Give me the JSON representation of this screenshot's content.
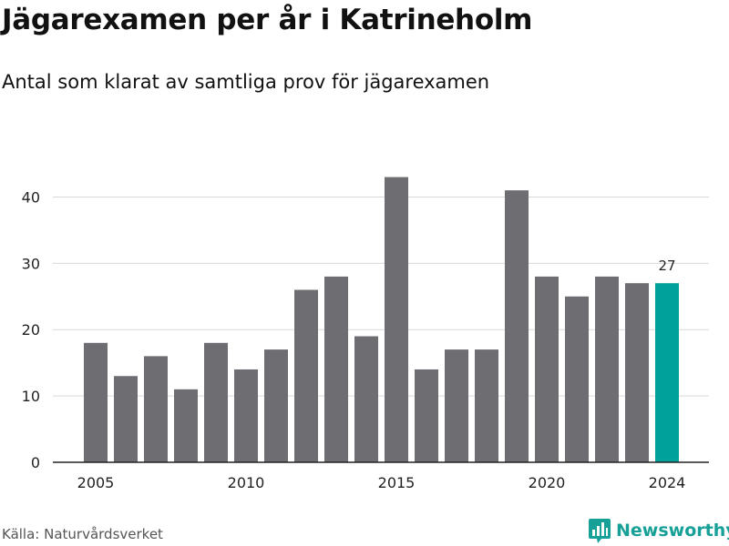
{
  "chart_data": {
    "type": "bar",
    "title": "Jägarexamen per år i Katrineholm",
    "subtitle": "Antal som klarat av samtliga prov för jägarexamen",
    "xlabel": "",
    "ylabel": "",
    "x": [
      2005,
      2006,
      2007,
      2008,
      2009,
      2010,
      2011,
      2012,
      2013,
      2014,
      2015,
      2016,
      2017,
      2018,
      2019,
      2020,
      2021,
      2022,
      2023,
      2024
    ],
    "values": [
      18,
      13,
      16,
      11,
      18,
      14,
      17,
      26,
      28,
      19,
      43,
      14,
      17,
      17,
      41,
      28,
      25,
      28,
      27,
      27
    ],
    "ylim": [
      0,
      45
    ],
    "yticks": [
      0,
      10,
      20,
      30,
      40
    ],
    "xticks": [
      "2005",
      "2010",
      "2015",
      "2020",
      "2024"
    ],
    "highlight": {
      "x": 2024,
      "label": "27"
    },
    "colors": {
      "bar": "#6e6d72",
      "highlight": "#00a19a",
      "grid": "#d9d9d9"
    },
    "grid": true
  },
  "footer": {
    "source": "Källa: Naturvårdsverket",
    "brand": "Newsworthy",
    "brand_icon": "bar-chart-logo-icon"
  }
}
